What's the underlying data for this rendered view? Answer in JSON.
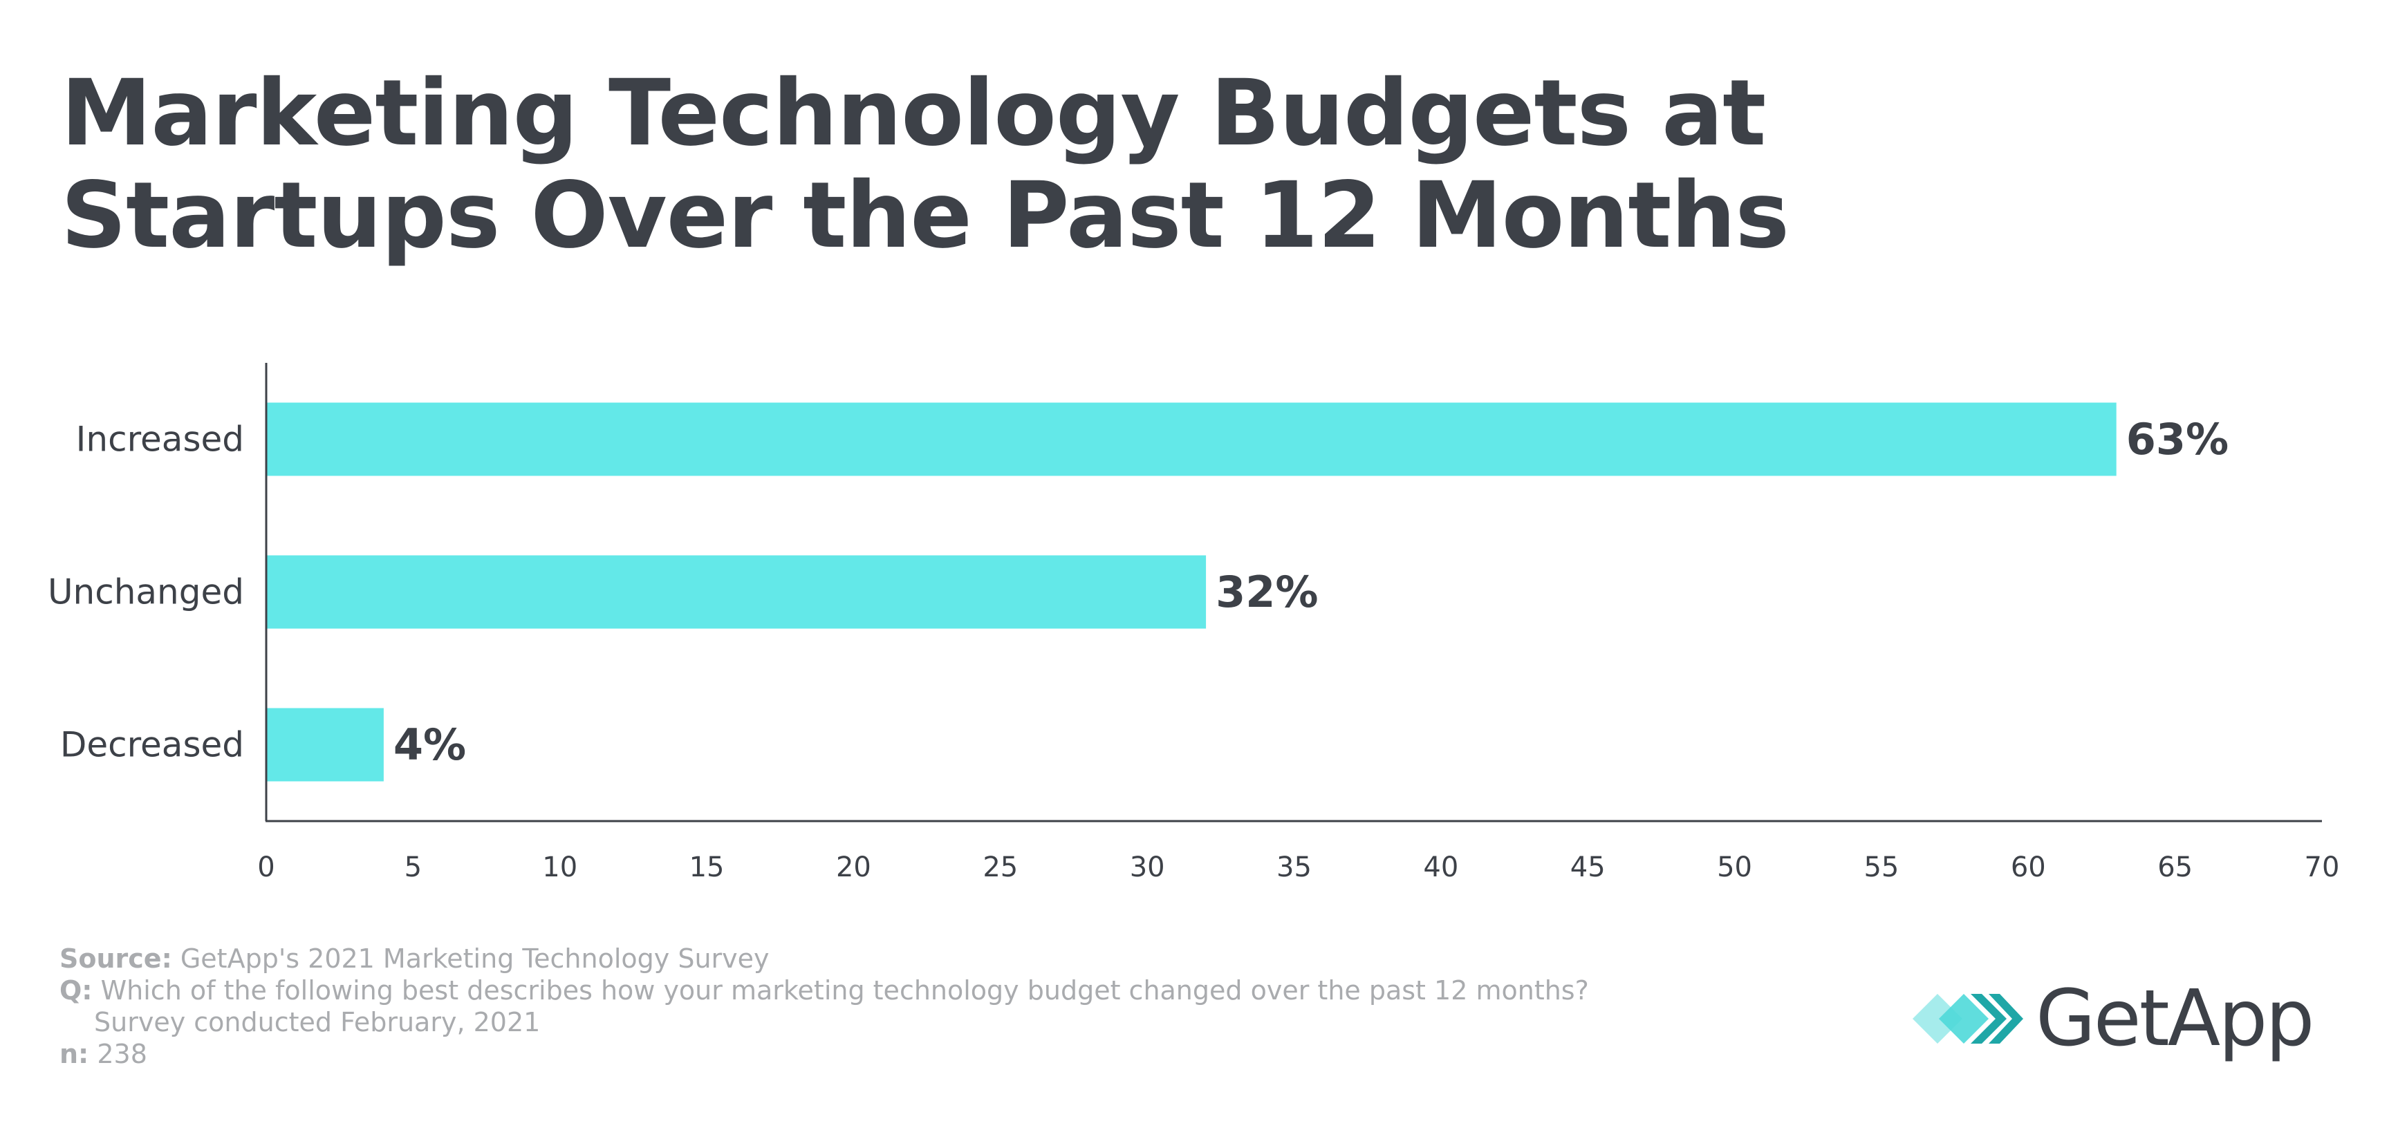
{
  "title": {
    "line1": "Marketing Technology Budgets at",
    "line2": "Startups Over the Past 12 Months"
  },
  "chart_data": {
    "type": "bar",
    "orientation": "horizontal",
    "categories": [
      "Increased",
      "Unchanged",
      "Decreased"
    ],
    "values": [
      63,
      32,
      4
    ],
    "data_labels": [
      "63%",
      "32%",
      "4%"
    ],
    "title": "Marketing Technology Budgets at Startups Over the Past 12 Months",
    "xlabel": "",
    "ylabel": "",
    "xlim": [
      0,
      70
    ],
    "ticks": [
      0,
      5,
      10,
      15,
      20,
      25,
      30,
      35,
      40,
      45,
      50,
      55,
      60,
      65,
      70
    ],
    "grid": false,
    "bar_color": "#63e8e8",
    "axis_color": "#3d4148"
  },
  "footnote": {
    "source_label": "Source:",
    "source_text": "GetApp's 2021 Marketing Technology Survey",
    "q_label": "Q:",
    "q_text": "Which of the following best describes how your marketing technology budget changed over the past 12 months?",
    "q_note": "Survey conducted February, 2021",
    "n_label": "n:",
    "n_value": "238"
  },
  "logo": {
    "text": "GetApp",
    "icon": "getapp-chevron-icon",
    "colors": [
      "#a6ecec",
      "#4fd9d9",
      "#1fa7a7"
    ]
  }
}
